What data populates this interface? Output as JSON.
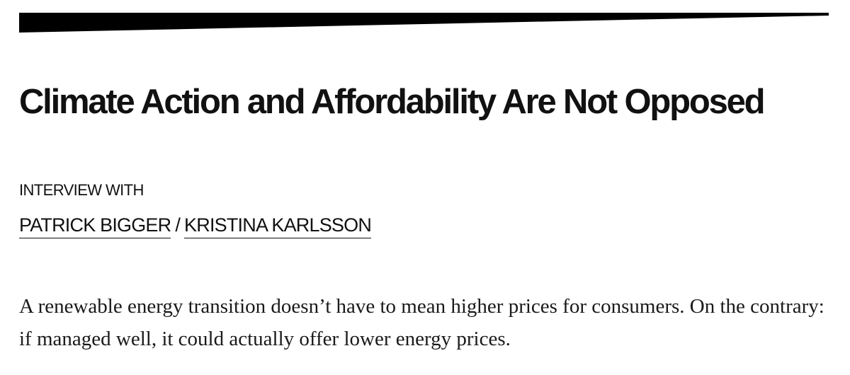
{
  "article": {
    "title": "Climate Action and Affordability Are Not Opposed",
    "kicker": "INTERVIEW WITH",
    "authors": [
      {
        "name": "PATRICK BIGGER"
      },
      {
        "name": "KRISTINA KARLSSON"
      }
    ],
    "author_separator": "/",
    "dek": "A renewable energy transition doesn’t have to mean higher prices for consumers. On the contrary: if managed well, it could actually offer lower energy prices."
  },
  "colors": {
    "text": "#111111",
    "background": "#ffffff",
    "rule": "#000000"
  }
}
